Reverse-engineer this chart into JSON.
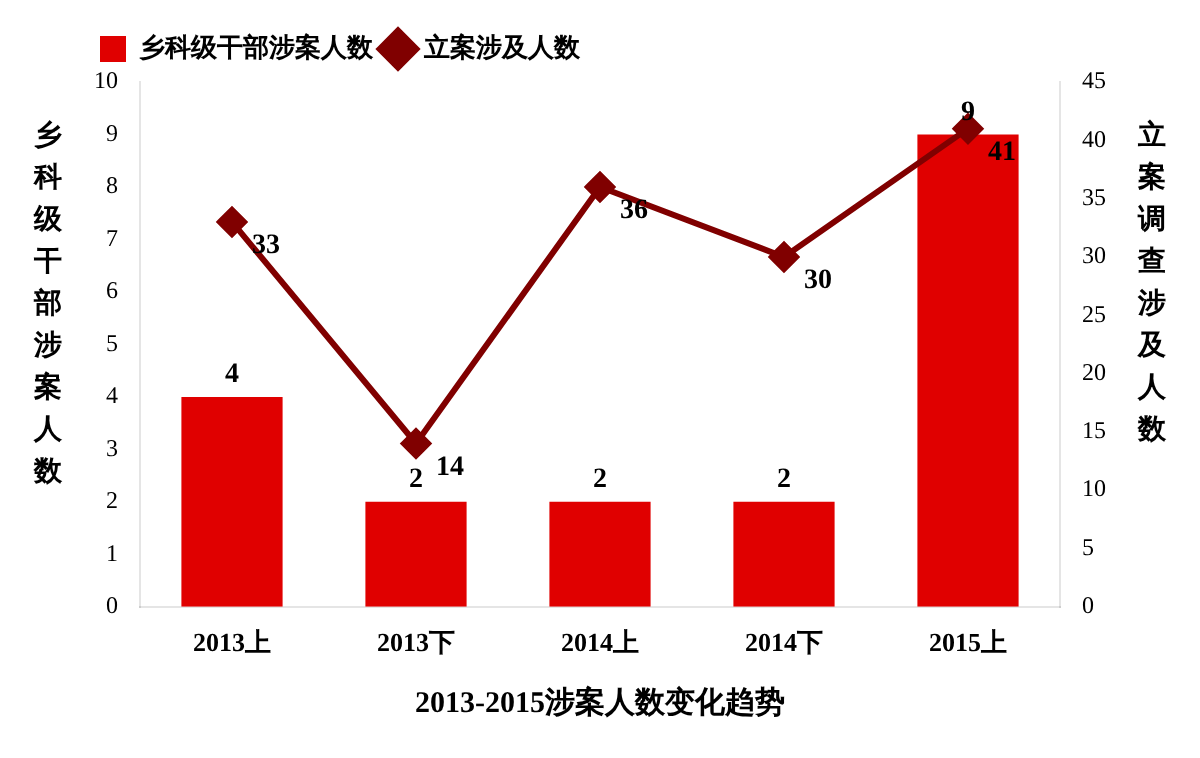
{
  "chart_data": {
    "type": "bar",
    "title": "2013-2015涉案人数变化趋势",
    "ylabel": "乡科级干部涉案人数",
    "y2label": "立案调查涉及人数",
    "categories": [
      "2013上",
      "2013下",
      "2014上",
      "2014下",
      "2015上"
    ],
    "series": [
      {
        "name": "乡科级干部涉案人数",
        "color": "#e00000",
        "values": [
          4,
          2,
          2,
          2,
          9
        ]
      },
      {
        "name": "立案涉及人数",
        "type": "line",
        "axis": "y2",
        "color": "#800000",
        "marker": "diamond",
        "values": [
          33,
          14,
          36,
          30,
          41
        ]
      }
    ],
    "ylim": [
      0,
      10
    ],
    "yticks": [
      0,
      1,
      2,
      3,
      4,
      5,
      6,
      7,
      8,
      9,
      10
    ],
    "y2lim": [
      0,
      45
    ],
    "y2ticks": [
      0,
      5,
      10,
      15,
      20,
      25,
      30,
      35,
      40,
      45
    ],
    "data_labels": true,
    "legend": "top left",
    "grid": false
  }
}
